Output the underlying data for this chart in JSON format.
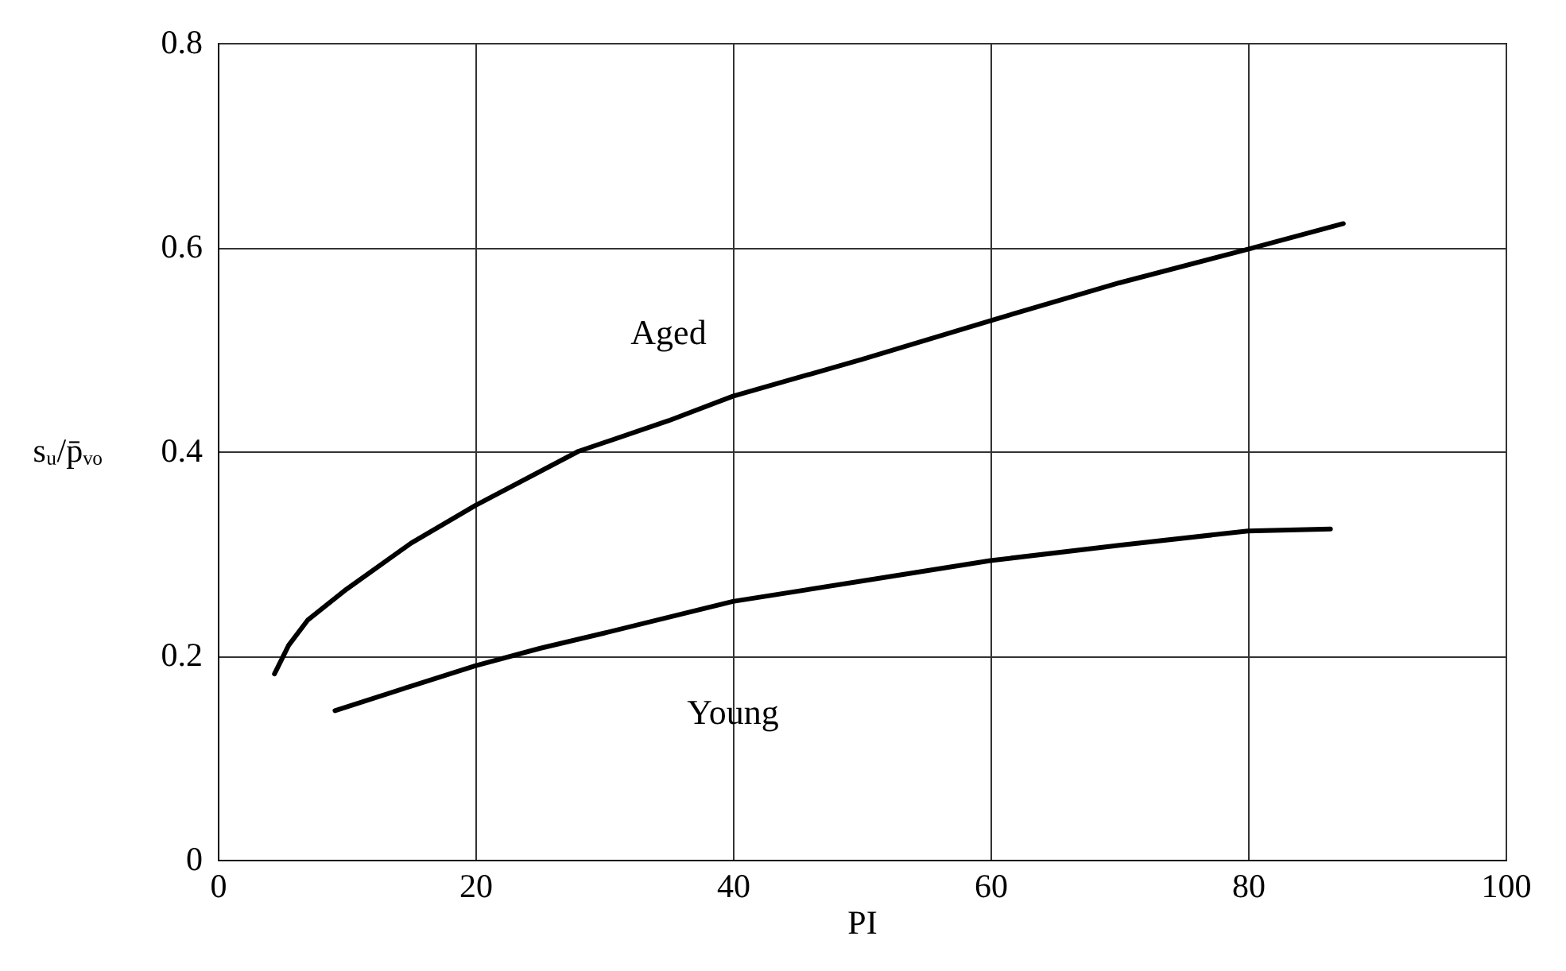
{
  "chart_data": {
    "type": "line",
    "xlabel": "PI",
    "ylabel": "sᵤ/p̄ᵥₒ",
    "xlim": [
      0,
      100
    ],
    "ylim": [
      0,
      0.8
    ],
    "xticks": [
      0,
      20,
      40,
      60,
      80,
      100
    ],
    "yticks": [
      0,
      0.2,
      0.4,
      0.6,
      0.8
    ],
    "grid": true,
    "line_style": "solid",
    "series": [
      {
        "name": "Aged",
        "color": "#000000",
        "x": [
          4.4,
          5.5,
          7,
          10,
          15,
          20,
          28,
          35,
          40,
          50,
          60,
          70,
          80,
          87.4
        ],
        "values": [
          0.182,
          0.21,
          0.235,
          0.265,
          0.31,
          0.347,
          0.4,
          0.43,
          0.454,
          0.49,
          0.528,
          0.565,
          0.598,
          0.623
        ]
      },
      {
        "name": "Young",
        "color": "#000000",
        "x": [
          9.1,
          15,
          20,
          25,
          30,
          40,
          50,
          60,
          70,
          80,
          86.4
        ],
        "values": [
          0.146,
          0.17,
          0.19,
          0.207,
          0.222,
          0.253,
          0.273,
          0.293,
          0.308,
          0.322,
          0.324
        ]
      }
    ]
  }
}
